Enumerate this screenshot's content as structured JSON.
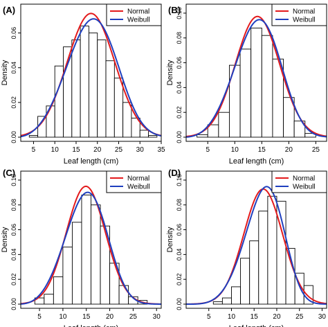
{
  "chart_data": [
    {
      "panel_label": "(A)",
      "type": "bar",
      "xlabel": "Leaf length (cm)",
      "ylabel": "Density",
      "xlim": [
        2,
        35
      ],
      "ylim": [
        0,
        0.075
      ],
      "xticks": [
        "5",
        "10",
        "15",
        "20",
        "25",
        "30",
        "35"
      ],
      "yticks": [
        "0.00",
        "0.02",
        "0.04",
        "0.06"
      ],
      "bin_edges": [
        4,
        6,
        8,
        10,
        12,
        14,
        16,
        18,
        20,
        22,
        24,
        26,
        28,
        30,
        32,
        34
      ],
      "values": [
        0.001,
        0.012,
        0.018,
        0.041,
        0.052,
        0.056,
        0.064,
        0.06,
        0.056,
        0.044,
        0.034,
        0.02,
        0.011,
        0.004,
        0.001
      ],
      "series": [
        {
          "name": "Normal",
          "color": "#e31a1c",
          "distribution": "normal",
          "mean": 18.5,
          "sd": 5.6
        },
        {
          "name": "Weibull",
          "color": "#1f3fbf",
          "distribution": "weibull",
          "shape": 3.7,
          "scale": 20.8
        }
      ],
      "legend_position": "top-right",
      "grid": false
    },
    {
      "panel_label": "(B)",
      "type": "bar",
      "xlabel": "Leaf length (cm)",
      "ylabel": "Density",
      "xlim": [
        1,
        27
      ],
      "ylim": [
        0,
        0.105
      ],
      "xticks": [
        "5",
        "10",
        "15",
        "20",
        "25"
      ],
      "yticks": [
        "0.00",
        "0.02",
        "0.04",
        "0.06",
        "0.08",
        "0.10"
      ],
      "bin_edges": [
        3,
        5,
        7,
        9,
        11,
        13,
        15,
        17,
        19,
        21,
        23,
        25
      ],
      "values": [
        0.002,
        0.01,
        0.02,
        0.058,
        0.071,
        0.088,
        0.082,
        0.063,
        0.032,
        0.013,
        0.003
      ],
      "series": [
        {
          "name": "Normal",
          "color": "#e31a1c",
          "distribution": "normal",
          "mean": 14.2,
          "sd": 4.1
        },
        {
          "name": "Weibull",
          "color": "#1f3fbf",
          "distribution": "weibull",
          "shape": 3.9,
          "scale": 15.7
        }
      ],
      "legend_position": "top-right",
      "grid": false
    },
    {
      "panel_label": "(C)",
      "type": "bar",
      "xlabel": "Leaf length (cm)",
      "ylabel": "Density",
      "xlim": [
        1,
        31
      ],
      "ylim": [
        0,
        0.105
      ],
      "xticks": [
        "5",
        "10",
        "15",
        "20",
        "25",
        "30"
      ],
      "yticks": [
        "0.00",
        "0.02",
        "0.04",
        "0.06",
        "0.08",
        "0.10"
      ],
      "bin_edges": [
        4,
        6,
        8,
        10,
        12,
        14,
        16,
        18,
        20,
        22,
        24,
        26,
        28
      ],
      "values": [
        0.005,
        0.008,
        0.022,
        0.046,
        0.066,
        0.088,
        0.08,
        0.063,
        0.033,
        0.015,
        0.006,
        0.003
      ],
      "series": [
        {
          "name": "Normal",
          "color": "#e31a1c",
          "distribution": "normal",
          "mean": 14.9,
          "sd": 4.2
        },
        {
          "name": "Weibull",
          "color": "#1f3fbf",
          "distribution": "weibull",
          "shape": 3.9,
          "scale": 16.5
        }
      ],
      "legend_position": "top-right",
      "grid": false
    },
    {
      "panel_label": "(D)",
      "type": "bar",
      "xlabel": "Leaf length (cm)",
      "ylabel": "Density",
      "xlim": [
        0,
        31
      ],
      "ylim": [
        0,
        0.105
      ],
      "xticks": [
        "5",
        "10",
        "15",
        "20",
        "25",
        "30"
      ],
      "yticks": [
        "0.00",
        "0.02",
        "0.04",
        "0.06",
        "0.08",
        "0.10"
      ],
      "bin_edges": [
        6,
        8,
        10,
        12,
        14,
        16,
        18,
        20,
        22,
        24,
        26,
        28
      ],
      "values": [
        0.002,
        0.005,
        0.014,
        0.037,
        0.051,
        0.075,
        0.087,
        0.083,
        0.045,
        0.025,
        0.015
      ],
      "series": [
        {
          "name": "Normal",
          "color": "#e31a1c",
          "distribution": "normal",
          "mean": 17.0,
          "sd": 4.3
        },
        {
          "name": "Weibull",
          "color": "#1f3fbf",
          "distribution": "weibull",
          "shape": 4.7,
          "scale": 18.7
        }
      ],
      "legend_position": "top-right",
      "grid": false
    }
  ]
}
